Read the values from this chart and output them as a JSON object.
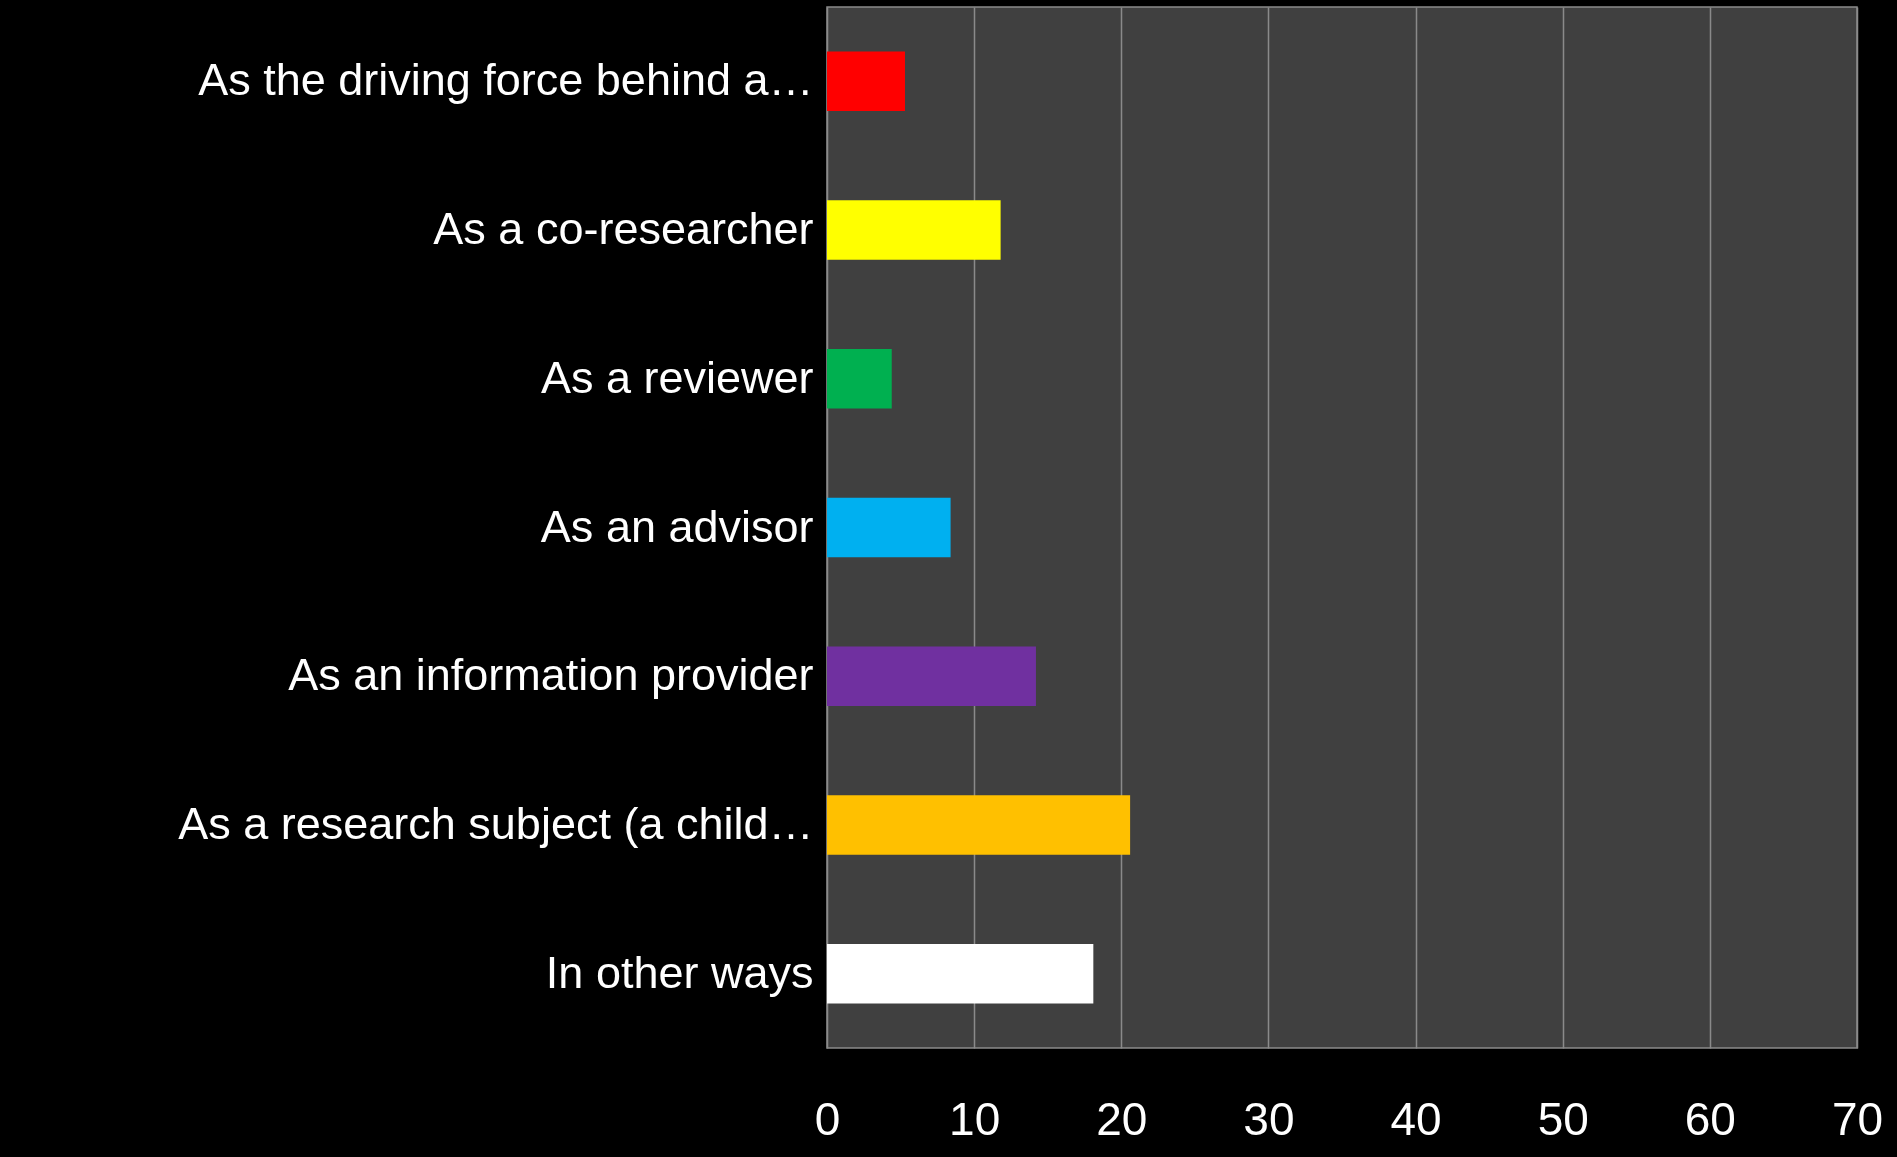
{
  "chart_data": {
    "type": "bar",
    "orientation": "horizontal",
    "categories": [
      "As the driving force behind a…",
      "As a co-researcher",
      "As a reviewer",
      "As an advisor",
      "As an information provider",
      "As a research subject (a child…",
      "In other ways"
    ],
    "values": [
      5.3,
      11.8,
      4.4,
      8.4,
      14.2,
      20.6,
      18.1
    ],
    "colors": [
      "#ff0000",
      "#ffff00",
      "#00b050",
      "#00b0f0",
      "#7030a0",
      "#ffc000",
      "#ffffff"
    ],
    "xlim": [
      0,
      70
    ],
    "xticks": [
      0,
      10,
      20,
      30,
      40,
      50,
      60,
      70
    ],
    "grid": "x"
  }
}
